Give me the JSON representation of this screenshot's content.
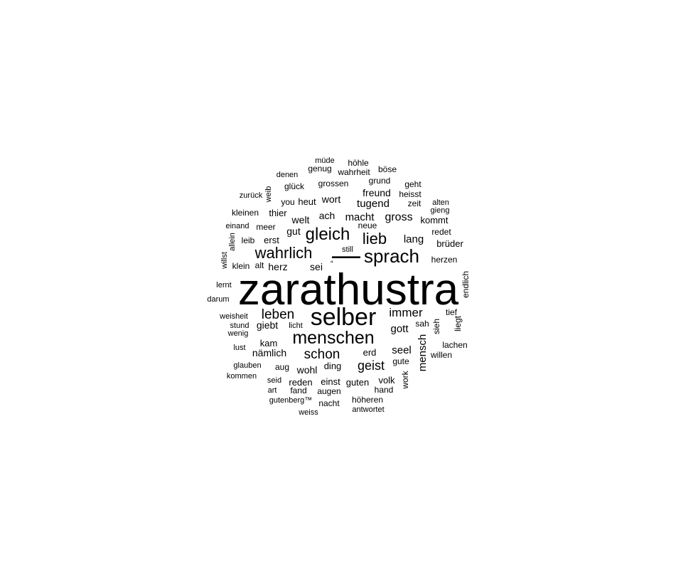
{
  "chart_data": {
    "type": "wordcloud",
    "title": "",
    "text_color": "#000000",
    "background": "#ffffff",
    "words": [
      {
        "text": "zarathustra",
        "weight": 100
      },
      {
        "text": "selber",
        "weight": 56
      },
      {
        "text": "sprach",
        "weight": 45
      },
      {
        "text": "menschen",
        "weight": 44
      },
      {
        "text": "—",
        "weight": 42
      },
      {
        "text": "gleich",
        "weight": 40
      },
      {
        "text": "wahrlich",
        "weight": 39
      },
      {
        "text": "lieb",
        "weight": 38
      },
      {
        "text": "leben",
        "weight": 33
      },
      {
        "text": "schon",
        "weight": 33
      },
      {
        "text": "immer",
        "weight": 32
      },
      {
        "text": "geist",
        "weight": 31
      },
      {
        "text": "gott",
        "weight": 29
      },
      {
        "text": "seel",
        "weight": 28
      },
      {
        "text": "mensch",
        "weight": 27
      },
      {
        "text": "gross",
        "weight": 27
      },
      {
        "text": "macht",
        "weight": 26
      },
      {
        "text": "tugend",
        "weight": 26
      },
      {
        "text": "lang",
        "weight": 26
      },
      {
        "text": "wort",
        "weight": 25
      },
      {
        "text": "freund",
        "weight": 25
      },
      {
        "text": "ach",
        "weight": 25
      },
      {
        "text": "welt",
        "weight": 25
      },
      {
        "text": "gut",
        "weight": 24
      },
      {
        "text": "giebt",
        "weight": 24
      },
      {
        "text": "herz",
        "weight": 24
      },
      {
        "text": "sei",
        "weight": 24
      },
      {
        "text": "nämlich",
        "weight": 24
      },
      {
        "text": "wohl",
        "weight": 23
      },
      {
        "text": "kam",
        "weight": 22
      },
      {
        "text": "erd",
        "weight": 22
      },
      {
        "text": "kommt",
        "weight": 22
      },
      {
        "text": "einst",
        "weight": 21
      },
      {
        "text": "reden",
        "weight": 21
      },
      {
        "text": "ding",
        "weight": 21
      },
      {
        "text": "volk",
        "weight": 21
      },
      {
        "text": "brüder",
        "weight": 21
      },
      {
        "text": "erst",
        "weight": 21
      },
      {
        "text": "thier",
        "weight": 21
      },
      {
        "text": "heut",
        "weight": 21
      },
      {
        "text": "redet",
        "weight": 20
      },
      {
        "text": "guten",
        "weight": 20
      },
      {
        "text": "herzen",
        "weight": 20
      },
      {
        "text": "alt",
        "weight": 20
      },
      {
        "text": "meer",
        "weight": 20
      },
      {
        "text": "augen",
        "weight": 20
      },
      {
        "text": "glück",
        "weight": 20
      },
      {
        "text": "grossen",
        "weight": 20
      },
      {
        "text": "you",
        "weight": 20
      },
      {
        "text": "sah",
        "weight": 20
      },
      {
        "text": "hand",
        "weight": 19
      },
      {
        "text": "lachen",
        "weight": 19
      },
      {
        "text": "nacht",
        "weight": 19
      },
      {
        "text": "höheren",
        "weight": 19
      },
      {
        "text": "fand",
        "weight": 19
      },
      {
        "text": "gute",
        "weight": 19
      },
      {
        "text": "neue",
        "weight": 19
      },
      {
        "text": "grund",
        "weight": 19
      },
      {
        "text": "zeit",
        "weight": 19
      },
      {
        "text": "geht",
        "weight": 19
      },
      {
        "text": "heisst",
        "weight": 19
      },
      {
        "text": "wahrheit",
        "weight": 19
      },
      {
        "text": "böse",
        "weight": 19
      },
      {
        "text": "höhle",
        "weight": 19
      },
      {
        "text": "genug",
        "weight": 19
      },
      {
        "text": "klein",
        "weight": 19
      },
      {
        "text": "leib",
        "weight": 19
      },
      {
        "text": "kleinen",
        "weight": 19
      },
      {
        "text": "aug",
        "weight": 19
      },
      {
        "text": "tief",
        "weight": 19
      },
      {
        "text": "sieh",
        "weight": 19
      },
      {
        "text": "work",
        "weight": 18
      },
      {
        "text": "liegt",
        "weight": 18
      },
      {
        "text": "endlich",
        "weight": 18
      },
      {
        "text": "willen",
        "weight": 18
      },
      {
        "text": "gieng",
        "weight": 18
      },
      {
        "text": "alten",
        "weight": 18
      },
      {
        "text": "still",
        "weight": 18
      },
      {
        "text": "müde",
        "weight": 18
      },
      {
        "text": "denen",
        "weight": 18
      },
      {
        "text": "zurück",
        "weight": 18
      },
      {
        "text": "weib",
        "weight": 18
      },
      {
        "text": "einand",
        "weight": 18
      },
      {
        "text": "allein",
        "weight": 18
      },
      {
        "text": "willst",
        "weight": 18
      },
      {
        "text": "lernt",
        "weight": 18
      },
      {
        "text": "darum",
        "weight": 18
      },
      {
        "text": "weisheit",
        "weight": 18
      },
      {
        "text": "stund",
        "weight": 18
      },
      {
        "text": "licht",
        "weight": 18
      },
      {
        "text": "wenig",
        "weight": 18
      },
      {
        "text": "lust",
        "weight": 18
      },
      {
        "text": "glauben",
        "weight": 18
      },
      {
        "text": "kommen",
        "weight": 18
      },
      {
        "text": "seid",
        "weight": 18
      },
      {
        "text": "art",
        "weight": 18
      },
      {
        "text": "gutenberg™",
        "weight": 18
      },
      {
        "text": "weiss",
        "weight": 18
      },
      {
        "text": "antwortet",
        "weight": 18
      },
      {
        "text": "“",
        "weight": 18
      }
    ]
  }
}
